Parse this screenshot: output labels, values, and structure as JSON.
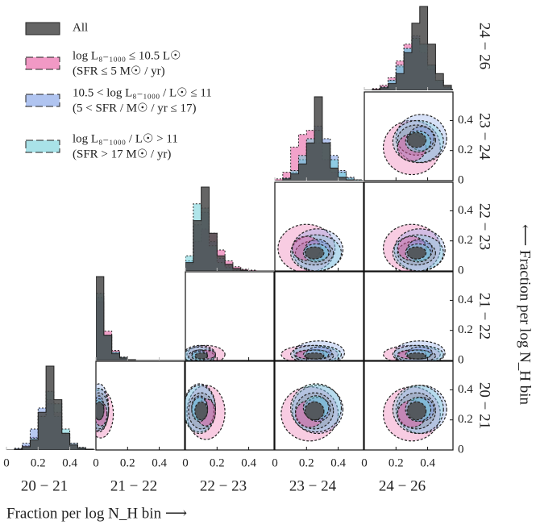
{
  "chart_data": {
    "type": "corner",
    "bins": [
      "20 − 21",
      "21 − 22",
      "22 − 23",
      "23 − 24",
      "24 − 26"
    ],
    "x_title": "Fraction per log N_H bin ⟶",
    "y_title": "⟵ Fraction per log N_H bin",
    "xlim": [
      0,
      0.56
    ],
    "xticks": [
      0,
      0.2,
      0.4
    ],
    "ylim": [
      0,
      0.59
    ],
    "yticks": [
      0,
      0.2,
      0.4
    ],
    "hist_edges": [
      0,
      0.05,
      0.1,
      0.15,
      0.2,
      0.25,
      0.3,
      0.35,
      0.4,
      0.45,
      0.5,
      0.55,
      0.6
    ],
    "series": [
      {
        "name": "All",
        "color": "#4a4a4a"
      },
      {
        "name": [
          "log L₈₋₁₀₀₀ ≤ 10.5 L☉",
          "(SFR ≤ 5 M☉ / yr)"
        ],
        "color": "#e8559f"
      },
      {
        "name": [
          "10.5 < log L₈₋₁₀₀₀ / L☉ ≤ 11",
          "(5 < SFR / M☉ / yr ≤ 17)"
        ],
        "color": "#7c9de6"
      },
      {
        "name": [
          "log L₈₋₁₀₀₀ / L☉  > 11",
          "(SFR > 17 M☉ / yr)"
        ],
        "color": "#6fcfd9"
      }
    ],
    "histograms": [
      [
        [
          0,
          1,
          4,
          12,
          45,
          100,
          60,
          20,
          6,
          2,
          1,
          0
        ],
        [
          0,
          1,
          5,
          15,
          40,
          60,
          45,
          20,
          8,
          3,
          1,
          0
        ],
        [
          0,
          2,
          8,
          25,
          50,
          55,
          40,
          18,
          6,
          2,
          1,
          0
        ],
        [
          0,
          1,
          4,
          14,
          40,
          70,
          55,
          25,
          8,
          3,
          1,
          0
        ]
      ],
      [
        [
          100,
          30,
          8,
          3,
          1,
          0,
          0,
          0,
          0,
          0,
          0,
          0
        ],
        [
          70,
          35,
          12,
          4,
          1,
          0,
          0,
          0,
          0,
          0,
          0,
          0
        ],
        [
          75,
          30,
          10,
          3,
          1,
          0,
          0,
          0,
          0,
          0,
          0,
          0
        ],
        [
          80,
          30,
          10,
          4,
          1,
          0,
          0,
          0,
          0,
          0,
          0,
          0
        ]
      ],
      [
        [
          10,
          60,
          100,
          45,
          18,
          8,
          3,
          1,
          0,
          0,
          0,
          0
        ],
        [
          8,
          35,
          50,
          45,
          25,
          12,
          5,
          2,
          1,
          0,
          0,
          0
        ],
        [
          12,
          55,
          70,
          35,
          15,
          6,
          2,
          1,
          0,
          0,
          0,
          0
        ],
        [
          18,
          80,
          75,
          30,
          10,
          4,
          1,
          0,
          0,
          0,
          0,
          0
        ]
      ],
      [
        [
          0,
          2,
          8,
          20,
          45,
          100,
          45,
          15,
          4,
          1,
          0,
          0
        ],
        [
          2,
          10,
          40,
          55,
          60,
          45,
          25,
          10,
          4,
          1,
          0,
          0
        ],
        [
          0,
          3,
          10,
          25,
          45,
          65,
          50,
          30,
          12,
          4,
          1,
          0
        ],
        [
          0,
          3,
          12,
          30,
          50,
          60,
          45,
          25,
          10,
          3,
          1,
          0
        ]
      ],
      [
        [
          0,
          1,
          3,
          8,
          20,
          45,
          80,
          100,
          55,
          20,
          6,
          1
        ],
        [
          0,
          2,
          6,
          15,
          35,
          55,
          60,
          45,
          25,
          10,
          3,
          1
        ],
        [
          0,
          1,
          4,
          12,
          28,
          50,
          65,
          55,
          30,
          12,
          4,
          1
        ],
        [
          0,
          1,
          4,
          12,
          30,
          50,
          62,
          55,
          30,
          12,
          4,
          1
        ]
      ]
    ],
    "contours": [
      {
        "x_bin": 1,
        "y_bin": 0,
        "ellipses": [
          [
            0.02,
            0.26,
            0.03,
            0.06
          ],
          [
            0.03,
            0.24,
            0.04,
            0.08
          ],
          [
            0.02,
            0.28,
            0.03,
            0.08
          ],
          [
            0.02,
            0.27,
            0.03,
            0.07
          ]
        ]
      },
      {
        "x_bin": 2,
        "y_bin": 0,
        "ellipses": [
          [
            0.1,
            0.26,
            0.04,
            0.06
          ],
          [
            0.13,
            0.25,
            0.06,
            0.09
          ],
          [
            0.09,
            0.28,
            0.05,
            0.08
          ],
          [
            0.09,
            0.27,
            0.05,
            0.08
          ]
        ]
      },
      {
        "x_bin": 3,
        "y_bin": 0,
        "ellipses": [
          [
            0.25,
            0.26,
            0.06,
            0.06
          ],
          [
            0.22,
            0.24,
            0.09,
            0.09
          ],
          [
            0.27,
            0.27,
            0.08,
            0.08
          ],
          [
            0.26,
            0.28,
            0.08,
            0.08
          ]
        ]
      },
      {
        "x_bin": 4,
        "y_bin": 0,
        "ellipses": [
          [
            0.33,
            0.26,
            0.06,
            0.06
          ],
          [
            0.3,
            0.24,
            0.09,
            0.09
          ],
          [
            0.36,
            0.27,
            0.08,
            0.08
          ],
          [
            0.34,
            0.27,
            0.08,
            0.08
          ]
        ]
      },
      {
        "x_bin": 2,
        "y_bin": 1,
        "ellipses": [
          [
            0.1,
            0.03,
            0.04,
            0.02
          ],
          [
            0.13,
            0.04,
            0.06,
            0.03
          ],
          [
            0.09,
            0.04,
            0.05,
            0.03
          ],
          [
            0.09,
            0.03,
            0.05,
            0.03
          ]
        ]
      },
      {
        "x_bin": 3,
        "y_bin": 1,
        "ellipses": [
          [
            0.25,
            0.03,
            0.06,
            0.02
          ],
          [
            0.22,
            0.04,
            0.09,
            0.03
          ],
          [
            0.28,
            0.05,
            0.08,
            0.04
          ],
          [
            0.26,
            0.04,
            0.08,
            0.03
          ]
        ]
      },
      {
        "x_bin": 4,
        "y_bin": 1,
        "ellipses": [
          [
            0.33,
            0.03,
            0.06,
            0.02
          ],
          [
            0.3,
            0.04,
            0.09,
            0.03
          ],
          [
            0.35,
            0.05,
            0.08,
            0.04
          ],
          [
            0.34,
            0.04,
            0.08,
            0.03
          ]
        ]
      },
      {
        "x_bin": 3,
        "y_bin": 2,
        "ellipses": [
          [
            0.25,
            0.12,
            0.06,
            0.04
          ],
          [
            0.2,
            0.15,
            0.09,
            0.08
          ],
          [
            0.27,
            0.14,
            0.08,
            0.07
          ],
          [
            0.26,
            0.12,
            0.08,
            0.06
          ]
        ]
      },
      {
        "x_bin": 4,
        "y_bin": 2,
        "ellipses": [
          [
            0.33,
            0.12,
            0.06,
            0.04
          ],
          [
            0.3,
            0.15,
            0.09,
            0.08
          ],
          [
            0.35,
            0.14,
            0.08,
            0.07
          ],
          [
            0.34,
            0.12,
            0.08,
            0.06
          ]
        ]
      },
      {
        "x_bin": 4,
        "y_bin": 3,
        "ellipses": [
          [
            0.33,
            0.27,
            0.06,
            0.05
          ],
          [
            0.3,
            0.22,
            0.09,
            0.09
          ],
          [
            0.36,
            0.28,
            0.08,
            0.08
          ],
          [
            0.34,
            0.26,
            0.08,
            0.07
          ]
        ]
      }
    ]
  }
}
